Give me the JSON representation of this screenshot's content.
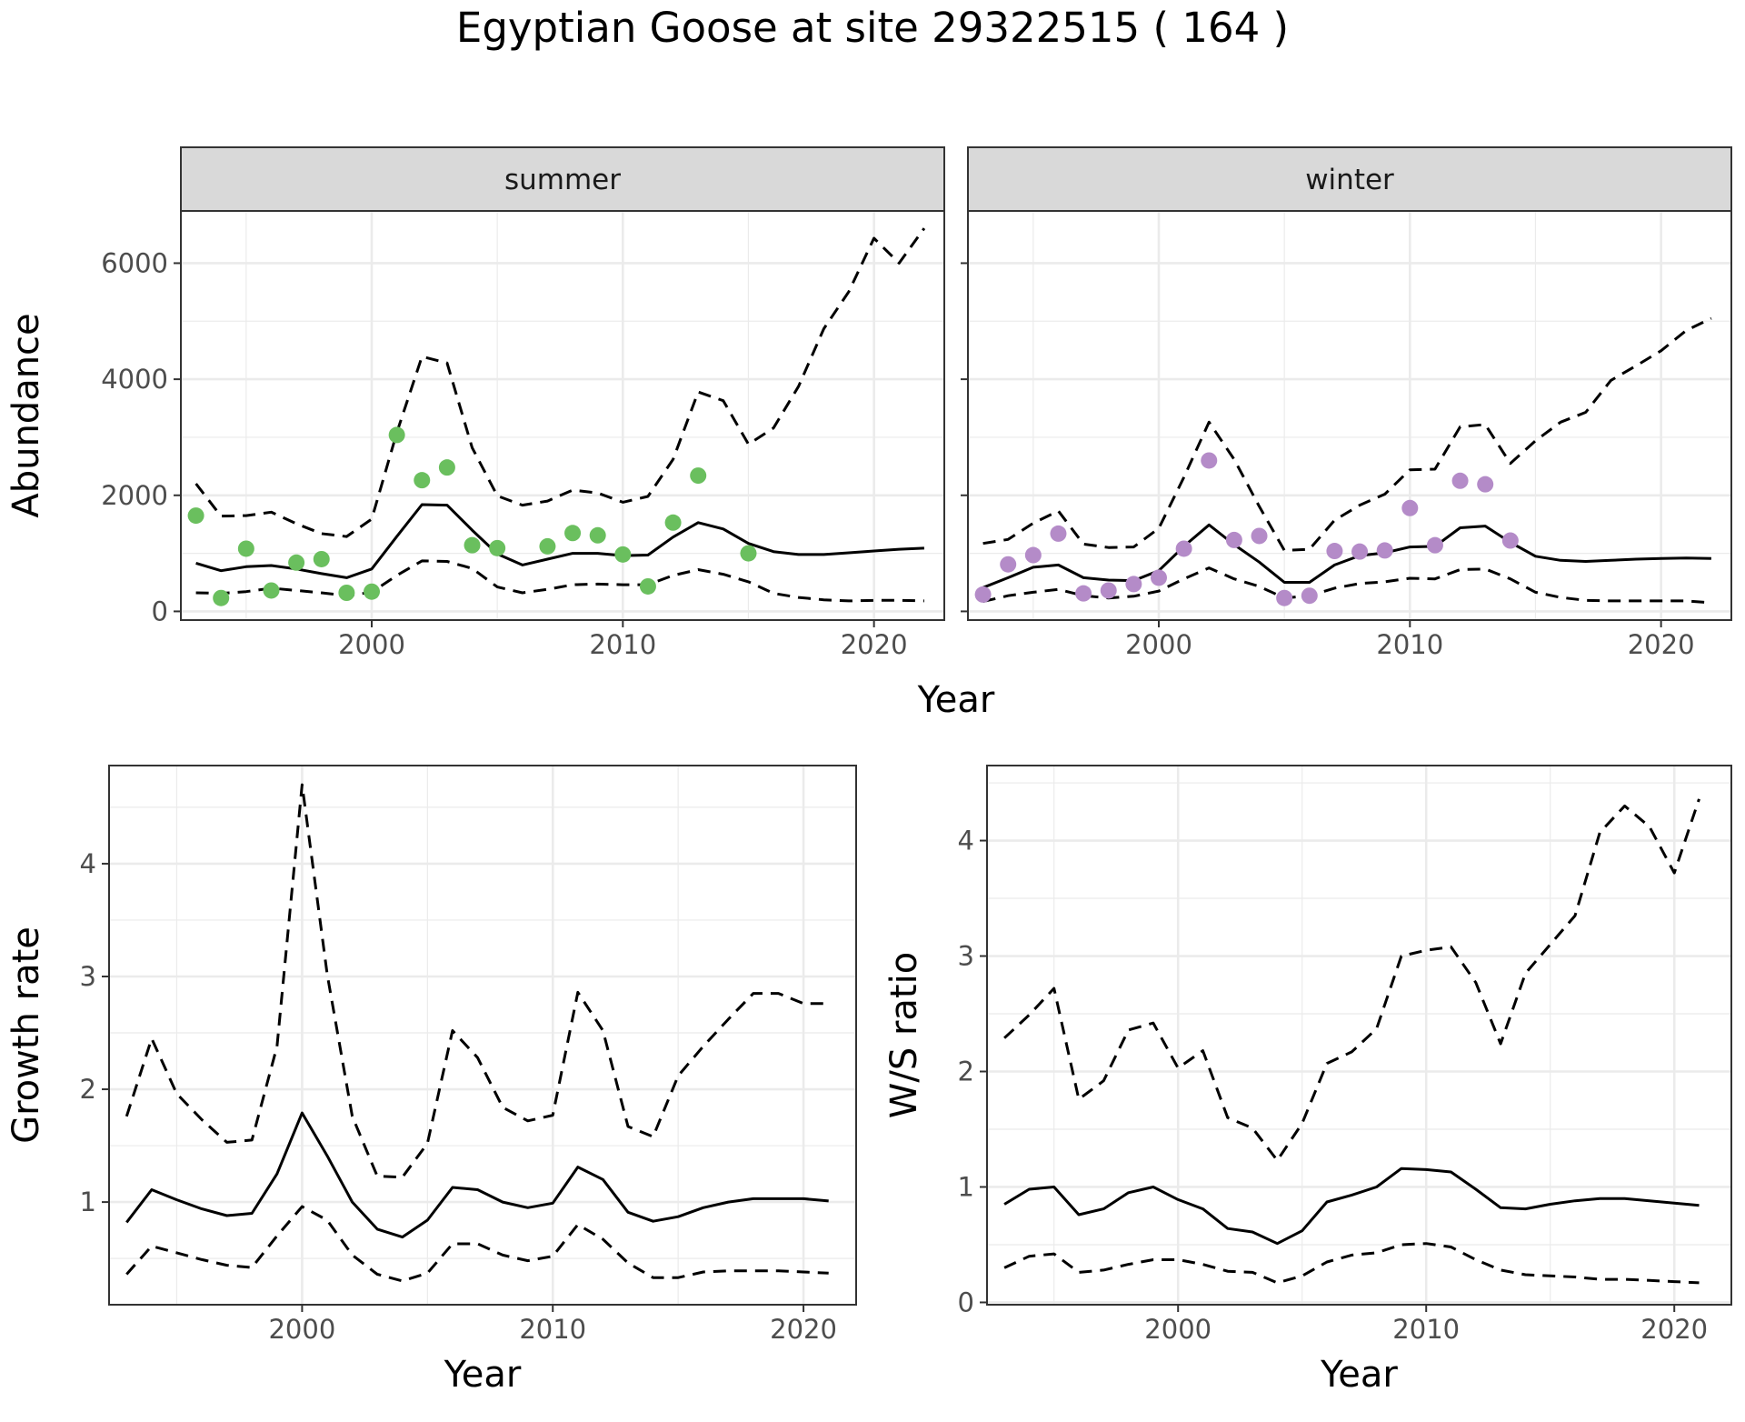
{
  "title": "Egyptian Goose at site 29322515 ( 164 )",
  "colors": {
    "summer_points": "#6abf5e",
    "winter_points": "#b48bc8",
    "line": "#000000",
    "grid": "#ebebeb",
    "strip_fill": "#d9d9d9",
    "panel_border": "#333333"
  },
  "chart_data": [
    {
      "type": "line",
      "facet": "summer",
      "strip_label": "summer",
      "xlabel": "Year",
      "ylabel": "Abundance",
      "xlim": [
        1992.4,
        2022.8
      ],
      "ylim": [
        -150,
        6900
      ],
      "xticks": [
        2000,
        2010,
        2020
      ],
      "yticks": [
        0,
        2000,
        4000,
        6000
      ],
      "grid": true,
      "points": {
        "x": [
          1993,
          1994,
          1995,
          1996,
          1997,
          1998,
          1999,
          2000,
          2001,
          2002,
          2003,
          2004,
          2005,
          2007,
          2008,
          2009,
          2010,
          2011,
          2012,
          2013,
          2015
        ],
        "y": [
          1650,
          230,
          1080,
          360,
          840,
          900,
          320,
          340,
          3040,
          2260,
          2480,
          1140,
          1090,
          1120,
          1350,
          1310,
          980,
          430,
          1530,
          2340,
          1000
        ]
      },
      "series": [
        {
          "style": "solid",
          "x": [
            1993,
            1994,
            1995,
            1996,
            1997,
            1998,
            1999,
            2000,
            2001,
            2002,
            2003,
            2004,
            2005,
            2006,
            2007,
            2008,
            2009,
            2010,
            2011,
            2012,
            2013,
            2014,
            2015,
            2016,
            2017,
            2018,
            2019,
            2020,
            2021,
            2022
          ],
          "y": [
            830,
            700,
            770,
            790,
            730,
            650,
            580,
            730,
            1290,
            1840,
            1830,
            1400,
            990,
            800,
            900,
            1000,
            1000,
            960,
            970,
            1280,
            1530,
            1420,
            1170,
            1030,
            980,
            980,
            1010,
            1040,
            1070,
            1090
          ]
        },
        {
          "style": "dashed",
          "x": [
            1993,
            1994,
            1995,
            1996,
            1997,
            1998,
            1999,
            2000,
            2001,
            2002,
            2003,
            2004,
            2005,
            2006,
            2007,
            2008,
            2009,
            2010,
            2011,
            2012,
            2013,
            2014,
            2015,
            2016,
            2017,
            2018,
            2019,
            2020,
            2021,
            2022
          ],
          "y": [
            2200,
            1640,
            1650,
            1710,
            1510,
            1340,
            1290,
            1590,
            3080,
            4390,
            4280,
            2820,
            1990,
            1830,
            1900,
            2090,
            2040,
            1880,
            1980,
            2620,
            3780,
            3630,
            2880,
            3160,
            3880,
            4870,
            5510,
            6430,
            6000,
            6600
          ]
        },
        {
          "style": "dashed",
          "x": [
            1993,
            1994,
            1995,
            1996,
            1997,
            1998,
            1999,
            2000,
            2001,
            2002,
            2003,
            2004,
            2005,
            2006,
            2007,
            2008,
            2009,
            2010,
            2011,
            2012,
            2013,
            2014,
            2015,
            2016,
            2017,
            2018,
            2019,
            2020,
            2021,
            2022
          ],
          "y": [
            320,
            310,
            340,
            400,
            360,
            320,
            270,
            330,
            620,
            870,
            860,
            740,
            420,
            320,
            380,
            460,
            470,
            460,
            460,
            620,
            720,
            640,
            510,
            310,
            240,
            200,
            180,
            190,
            190,
            180
          ]
        }
      ]
    },
    {
      "type": "line",
      "facet": "winter",
      "strip_label": "winter",
      "xlabel": "Year",
      "ylabel": "Abundance",
      "xlim": [
        1992.4,
        2022.8
      ],
      "ylim": [
        -150,
        6900
      ],
      "xticks": [
        2000,
        2010,
        2020
      ],
      "yticks": [
        0,
        2000,
        4000,
        6000
      ],
      "grid": true,
      "points": {
        "x": [
          1993,
          1994,
          1995,
          1996,
          1997,
          1998,
          1999,
          2000,
          2001,
          2002,
          2003,
          2004,
          2005,
          2006,
          2007,
          2008,
          2009,
          2010,
          2011,
          2012,
          2013,
          2014
        ],
        "y": [
          290,
          810,
          970,
          1340,
          310,
          360,
          470,
          580,
          1080,
          2600,
          1230,
          1300,
          230,
          270,
          1040,
          1030,
          1050,
          1780,
          1140,
          2250,
          2190,
          1220
        ]
      },
      "series": [
        {
          "style": "solid",
          "x": [
            1993,
            1994,
            1995,
            1996,
            1997,
            1998,
            1999,
            2000,
            2001,
            2002,
            2003,
            2004,
            2005,
            2006,
            2007,
            2008,
            2009,
            2010,
            2011,
            2012,
            2013,
            2014,
            2015,
            2016,
            2017,
            2018,
            2019,
            2020,
            2021,
            2022
          ],
          "y": [
            410,
            580,
            760,
            800,
            580,
            540,
            530,
            700,
            1120,
            1490,
            1150,
            850,
            500,
            500,
            800,
            960,
            1010,
            1110,
            1120,
            1440,
            1470,
            1190,
            950,
            880,
            860,
            880,
            900,
            910,
            920,
            910
          ]
        },
        {
          "style": "dashed",
          "x": [
            1993,
            1994,
            1995,
            1996,
            1997,
            1998,
            1999,
            2000,
            2001,
            2002,
            2003,
            2004,
            2005,
            2006,
            2007,
            2008,
            2009,
            2010,
            2011,
            2012,
            2013,
            2014,
            2015,
            2016,
            2017,
            2018,
            2019,
            2020,
            2021,
            2022
          ],
          "y": [
            1170,
            1240,
            1520,
            1730,
            1160,
            1100,
            1110,
            1430,
            2310,
            3260,
            2620,
            1810,
            1050,
            1070,
            1570,
            1830,
            2020,
            2440,
            2450,
            3180,
            3220,
            2550,
            2940,
            3260,
            3430,
            3980,
            4230,
            4490,
            4840,
            5050
          ]
        },
        {
          "style": "dashed",
          "x": [
            1993,
            1994,
            1995,
            1996,
            1997,
            1998,
            1999,
            2000,
            2001,
            2002,
            2003,
            2004,
            2005,
            2006,
            2007,
            2008,
            2009,
            2010,
            2011,
            2012,
            2013,
            2014,
            2015,
            2016,
            2017,
            2018,
            2019,
            2020,
            2021,
            2022
          ],
          "y": [
            170,
            270,
            330,
            380,
            270,
            230,
            260,
            350,
            560,
            750,
            560,
            430,
            230,
            270,
            400,
            480,
            510,
            570,
            560,
            720,
            730,
            560,
            330,
            240,
            190,
            180,
            180,
            180,
            180,
            150
          ]
        }
      ]
    },
    {
      "type": "line",
      "xlabel": "Year",
      "ylabel": "Growth rate",
      "xlim": [
        1992.3,
        2022.1
      ],
      "ylim": [
        0.09,
        4.87
      ],
      "xticks": [
        2000,
        2010,
        2020
      ],
      "yticks": [
        1,
        2,
        3,
        4
      ],
      "grid": true,
      "series": [
        {
          "style": "solid",
          "x": [
            1993,
            1994,
            1995,
            1996,
            1997,
            1998,
            1999,
            2000,
            2001,
            2002,
            2003,
            2004,
            2005,
            2006,
            2007,
            2008,
            2009,
            2010,
            2011,
            2012,
            2013,
            2014,
            2015,
            2016,
            2017,
            2018,
            2019,
            2020,
            2021
          ],
          "y": [
            0.82,
            1.11,
            1.02,
            0.94,
            0.88,
            0.9,
            1.25,
            1.79,
            1.41,
            1.0,
            0.76,
            0.69,
            0.84,
            1.13,
            1.11,
            1.0,
            0.95,
            0.99,
            1.31,
            1.2,
            0.91,
            0.83,
            0.87,
            0.95,
            1.0,
            1.03,
            1.03,
            1.03,
            1.01
          ]
        },
        {
          "style": "dashed",
          "x": [
            1993,
            1994,
            1995,
            1996,
            1997,
            1998,
            1999,
            2000,
            2001,
            2002,
            2003,
            2004,
            2005,
            2006,
            2007,
            2008,
            2009,
            2010,
            2011,
            2012,
            2013,
            2014,
            2015,
            2016,
            2017,
            2018,
            2019,
            2020,
            2021
          ],
          "y": [
            1.76,
            2.45,
            1.96,
            1.73,
            1.53,
            1.55,
            2.38,
            4.7,
            3.02,
            1.76,
            1.23,
            1.22,
            1.52,
            2.52,
            2.28,
            1.84,
            1.72,
            1.77,
            2.86,
            2.52,
            1.67,
            1.58,
            2.12,
            2.38,
            2.62,
            2.85,
            2.85,
            2.76,
            2.76
          ]
        },
        {
          "style": "dashed",
          "x": [
            1993,
            1994,
            1995,
            1996,
            1997,
            1998,
            1999,
            2000,
            2001,
            2002,
            2003,
            2004,
            2005,
            2006,
            2007,
            2008,
            2009,
            2010,
            2011,
            2012,
            2013,
            2014,
            2015,
            2016,
            2017,
            2018,
            2019,
            2020,
            2021
          ],
          "y": [
            0.36,
            0.61,
            0.55,
            0.49,
            0.44,
            0.42,
            0.7,
            0.96,
            0.84,
            0.53,
            0.36,
            0.3,
            0.37,
            0.63,
            0.63,
            0.53,
            0.48,
            0.52,
            0.8,
            0.67,
            0.46,
            0.33,
            0.33,
            0.38,
            0.39,
            0.39,
            0.39,
            0.38,
            0.37
          ]
        }
      ]
    },
    {
      "type": "line",
      "xlabel": "Year",
      "ylabel": "W/S ratio",
      "xlim": [
        1992.3,
        2022.3
      ],
      "ylim": [
        -0.02,
        4.65
      ],
      "xticks": [
        2000,
        2010,
        2020
      ],
      "yticks": [
        0,
        1,
        2,
        3,
        4
      ],
      "grid": true,
      "series": [
        {
          "style": "solid",
          "x": [
            1993,
            1994,
            1995,
            1996,
            1997,
            1998,
            1999,
            2000,
            2001,
            2002,
            2003,
            2004,
            2005,
            2006,
            2007,
            2008,
            2009,
            2010,
            2011,
            2012,
            2013,
            2014,
            2015,
            2016,
            2017,
            2018,
            2019,
            2020,
            2021
          ],
          "y": [
            0.85,
            0.98,
            1.0,
            0.76,
            0.81,
            0.95,
            1.0,
            0.89,
            0.81,
            0.64,
            0.61,
            0.51,
            0.62,
            0.87,
            0.93,
            1.0,
            1.16,
            1.15,
            1.13,
            0.98,
            0.82,
            0.81,
            0.85,
            0.88,
            0.9,
            0.9,
            0.88,
            0.86,
            0.84
          ]
        },
        {
          "style": "dashed",
          "x": [
            1993,
            1994,
            1995,
            1996,
            1997,
            1998,
            1999,
            2000,
            2001,
            2002,
            2003,
            2004,
            2005,
            2006,
            2007,
            2008,
            2009,
            2010,
            2011,
            2012,
            2013,
            2014,
            2015,
            2016,
            2017,
            2018,
            2019,
            2020,
            2021
          ],
          "y": [
            2.29,
            2.49,
            2.72,
            1.76,
            1.92,
            2.36,
            2.42,
            2.03,
            2.18,
            1.6,
            1.51,
            1.23,
            1.55,
            2.07,
            2.17,
            2.37,
            3.0,
            3.05,
            3.08,
            2.77,
            2.24,
            2.85,
            3.1,
            3.35,
            4.07,
            4.3,
            4.12,
            3.72,
            4.36
          ]
        },
        {
          "style": "dashed",
          "x": [
            1993,
            1994,
            1995,
            1996,
            1997,
            1998,
            1999,
            2000,
            2001,
            2002,
            2003,
            2004,
            2005,
            2006,
            2007,
            2008,
            2009,
            2010,
            2011,
            2012,
            2013,
            2014,
            2015,
            2016,
            2017,
            2018,
            2019,
            2020,
            2021
          ],
          "y": [
            0.3,
            0.4,
            0.42,
            0.26,
            0.28,
            0.33,
            0.37,
            0.37,
            0.33,
            0.27,
            0.26,
            0.17,
            0.23,
            0.35,
            0.41,
            0.43,
            0.5,
            0.51,
            0.48,
            0.37,
            0.28,
            0.24,
            0.23,
            0.22,
            0.2,
            0.2,
            0.19,
            0.18,
            0.17
          ]
        }
      ]
    }
  ]
}
